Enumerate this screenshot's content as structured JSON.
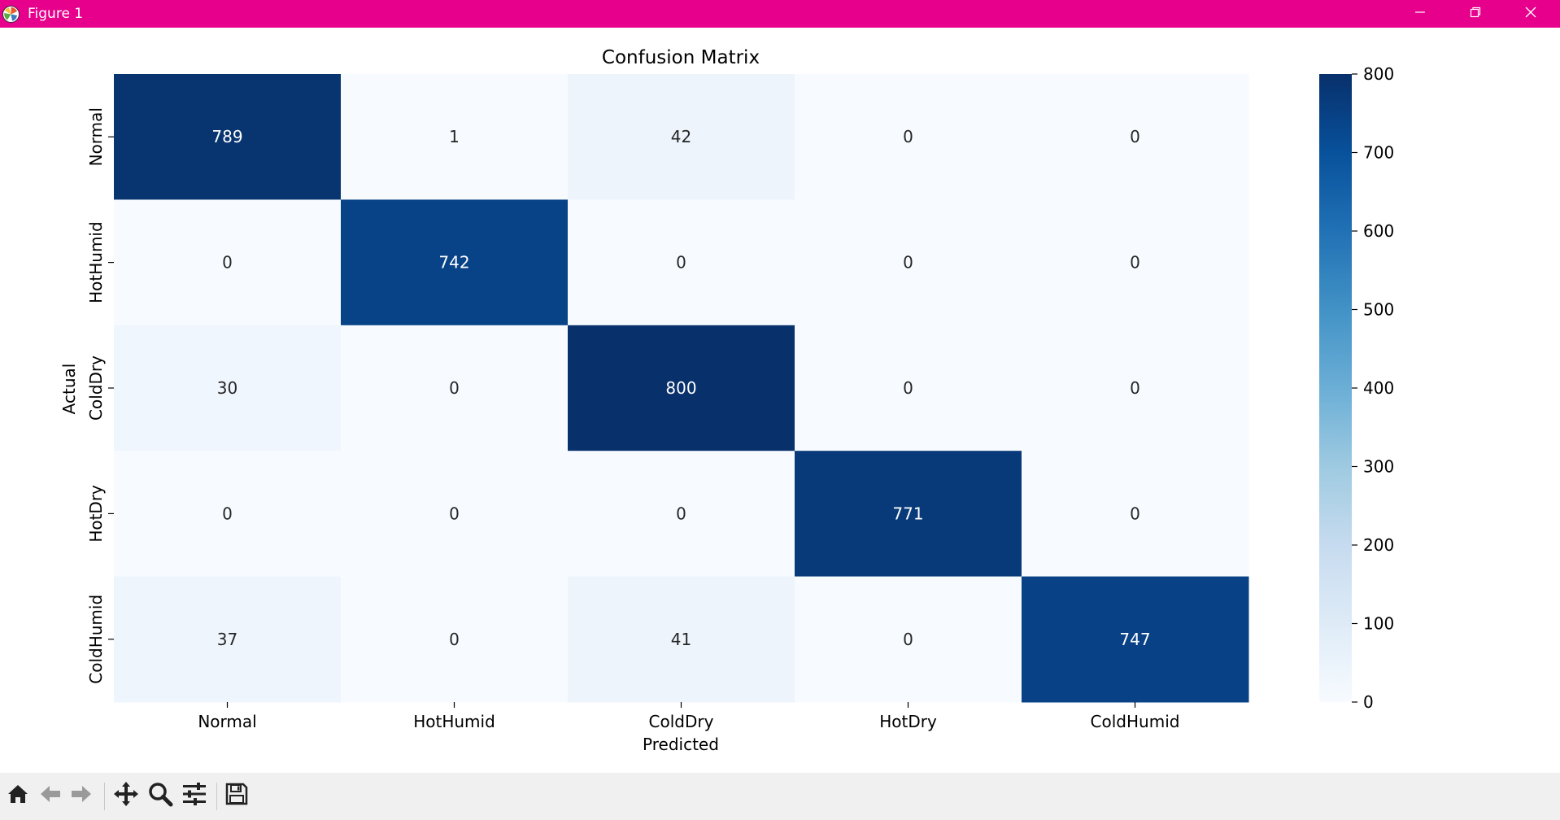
{
  "window": {
    "title": "Figure 1",
    "titlebar_color": "#e6008c",
    "controls": [
      "minimize-icon",
      "restore-icon",
      "close-icon"
    ]
  },
  "toolbar": {
    "buttons": [
      "home-icon",
      "back-arrow-icon",
      "forward-arrow-icon",
      "pan-icon",
      "zoom-icon",
      "configure-subplots-icon",
      "save-icon"
    ]
  },
  "chart_data": {
    "type": "heatmap",
    "title": "Confusion Matrix",
    "xlabel": "Predicted",
    "ylabel": "Actual",
    "x_categories": [
      "Normal",
      "HotHumid",
      "ColdDry",
      "HotDry",
      "ColdHumid"
    ],
    "y_categories": [
      "Normal",
      "HotHumid",
      "ColdDry",
      "HotDry",
      "ColdHumid"
    ],
    "values": [
      [
        789,
        1,
        42,
        0,
        0
      ],
      [
        0,
        742,
        0,
        0,
        0
      ],
      [
        30,
        0,
        800,
        0,
        0
      ],
      [
        0,
        0,
        0,
        771,
        0
      ],
      [
        37,
        0,
        41,
        0,
        747
      ]
    ],
    "colormap": "Blues",
    "colorbar": {
      "min": 0,
      "max": 800,
      "ticks": [
        0,
        100,
        200,
        300,
        400,
        500,
        600,
        700,
        800
      ]
    }
  }
}
